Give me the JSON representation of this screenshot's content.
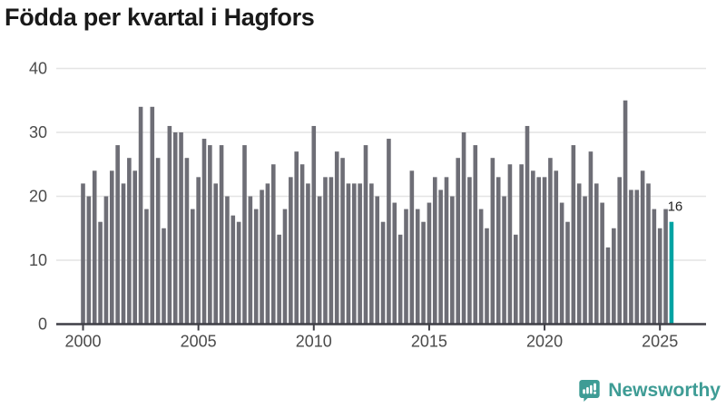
{
  "header": {
    "title": "Födda per kvartal i Hagfors"
  },
  "chart_data": {
    "type": "bar",
    "title": "Födda per kvartal i Hagfors",
    "x_start": "2000 Q1",
    "x_end": "2025 Q3",
    "frequency": "quarterly",
    "values": [
      22,
      20,
      24,
      16,
      20,
      24,
      28,
      22,
      26,
      24,
      34,
      18,
      34,
      26,
      15,
      31,
      30,
      30,
      26,
      18,
      23,
      29,
      28,
      22,
      28,
      20,
      17,
      16,
      28,
      20,
      18,
      21,
      22,
      25,
      14,
      18,
      23,
      27,
      25,
      22,
      31,
      20,
      23,
      23,
      27,
      26,
      22,
      22,
      22,
      28,
      22,
      20,
      16,
      29,
      19,
      14,
      18,
      24,
      18,
      16,
      19,
      23,
      21,
      23,
      20,
      26,
      30,
      23,
      28,
      18,
      15,
      26,
      23,
      20,
      25,
      14,
      25,
      31,
      24,
      23,
      23,
      26,
      24,
      19,
      16,
      28,
      22,
      20,
      27,
      22,
      19,
      12,
      15,
      23,
      35,
      21,
      21,
      24,
      22,
      18,
      15,
      18,
      16
    ],
    "highlight": {
      "index": 102,
      "value": 16,
      "label": "16",
      "color": "#00A3A3"
    },
    "bar_color": "#6E6E76",
    "yticks": [
      0,
      10,
      20,
      30,
      40
    ],
    "ylim": [
      0,
      40
    ],
    "xticks": [
      "2000",
      "2005",
      "2010",
      "2015",
      "2020",
      "2025"
    ],
    "grid": true,
    "legend": false
  },
  "branding": {
    "name": "Newsworthy",
    "color": "#3E9C95"
  },
  "colors": {
    "background": "#FFFFFF",
    "title_text": "#191919",
    "axis_text": "#4B4B4B",
    "gridline": "#E4E4E4",
    "axis_line": "#3F3F46",
    "bar": "#6E6E76",
    "highlight_bar": "#00A3A3",
    "annotation_text": "#1F1F1F",
    "brand_teal": "#3E9C95"
  }
}
